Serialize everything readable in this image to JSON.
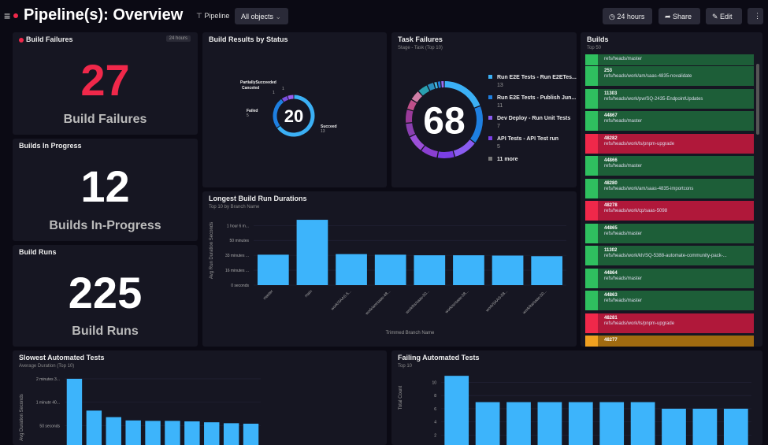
{
  "header": {
    "title": "Pipeline(s): Overview",
    "filter_label": "Pipeline",
    "filter_value": "All objects",
    "time_label": "24 hours",
    "share_label": "Share",
    "edit_label": "Edit",
    "more": "⋮",
    "menu": "≡"
  },
  "build_failures": {
    "title": "Build Failures",
    "tag": "24 hours",
    "value": "27",
    "label": "Build Failures",
    "color": "#f0284a"
  },
  "builds_in_progress": {
    "title": "Builds In Progress",
    "value": "12",
    "label": "Builds In-Progress"
  },
  "build_runs": {
    "title": "Build Runs",
    "value": "225",
    "label": "Build Runs"
  },
  "build_results": {
    "title": "Build Results by Status",
    "total": "20",
    "slices": [
      {
        "name": "Succeed",
        "value": 13,
        "color": "#3bb0f5"
      },
      {
        "name": "Failed",
        "value": 5,
        "color": "#1e7fe0"
      },
      {
        "name": "PartiallySucceeded",
        "value": 1,
        "color": "#7a4fe0"
      },
      {
        "name": "Canceled",
        "value": 1,
        "color": "#9a5cf0"
      }
    ]
  },
  "task_failures": {
    "title": "Task Failures",
    "subtitle": "Stage - Task (Top 10)",
    "total": "68",
    "legend": [
      {
        "label": "Run E2E Tests - Run E2ETes...",
        "value": "13",
        "color": "#3bb0f5"
      },
      {
        "label": "Run E2E Tests - Publish Jun...",
        "value": "11",
        "color": "#1e7fe0"
      },
      {
        "label": "Dev Deploy - Run Unit Tests",
        "value": "7",
        "color": "#8a5cf0"
      },
      {
        "label": "API Tests - API Test run",
        "value": "5",
        "color": "#7b3fe4"
      },
      {
        "label": "11 more",
        "color": "#777"
      }
    ],
    "segments": [
      {
        "value": 13,
        "color": "#3bb0f5"
      },
      {
        "value": 11,
        "color": "#1e7fe0"
      },
      {
        "value": 7,
        "color": "#8a5cf0"
      },
      {
        "value": 5,
        "color": "#7b3fe4"
      },
      {
        "value": 5,
        "color": "#8a3fd0"
      },
      {
        "value": 5,
        "color": "#9b4fd8"
      },
      {
        "value": 4,
        "color": "#8a3fb0"
      },
      {
        "value": 4,
        "color": "#9a3a9a"
      },
      {
        "value": 3,
        "color": "#c0508a"
      },
      {
        "value": 3,
        "color": "#d080a8"
      },
      {
        "value": 3,
        "color": "#2aa0b0"
      },
      {
        "value": 2,
        "color": "#2a90c0"
      },
      {
        "value": 1,
        "color": "#40b8e0"
      },
      {
        "value": 1,
        "color": "#2080e0"
      },
      {
        "value": 1,
        "color": "#9a6cf0"
      }
    ]
  },
  "builds": {
    "title": "Builds",
    "subtitle": "Top 50",
    "items": [
      {
        "number": "",
        "branch": "refs/heads/master",
        "status": "success"
      },
      {
        "number": "253",
        "branch": "refs/heads/work/am/saas-4835-novalidate",
        "status": "success"
      },
      {
        "number": "11303",
        "branch": "refs/heads/work/pw/SQ-2435-EndpointUpdates",
        "status": "success"
      },
      {
        "number": "44867",
        "branch": "refs/heads/master",
        "status": "success"
      },
      {
        "number": "48282",
        "branch": "refs/heads/work/ls/pnpm-upgrade",
        "status": "failed"
      },
      {
        "number": "44866",
        "branch": "refs/heads/master",
        "status": "success"
      },
      {
        "number": "48280",
        "branch": "refs/heads/work/am/saas-4835-importcons",
        "status": "success"
      },
      {
        "number": "48278",
        "branch": "refs/heads/work/cp/saas-5098",
        "status": "failed"
      },
      {
        "number": "44865",
        "branch": "refs/heads/master",
        "status": "success"
      },
      {
        "number": "11302",
        "branch": "refs/heads/work/kh/SQ-5388-automate-community-pack-...",
        "status": "success"
      },
      {
        "number": "44864",
        "branch": "refs/heads/master",
        "status": "success"
      },
      {
        "number": "44863",
        "branch": "refs/heads/master",
        "status": "success"
      },
      {
        "number": "48281",
        "branch": "refs/heads/work/ls/pnpm-upgrade",
        "status": "failed"
      },
      {
        "number": "48277",
        "branch": "",
        "status": "partial"
      }
    ],
    "colors": {
      "success": [
        "#2fbf5f",
        "#1d5e38"
      ],
      "failed": [
        "#f0284a",
        "#b0183a"
      ],
      "partial": [
        "#f0a020",
        "#a06a10"
      ]
    }
  },
  "chart_data": [
    {
      "type": "bar",
      "title": "Longest Build Run Durations",
      "subtitle": "Top 10 by Branch Name",
      "xlabel": "Trimmed Branch Name",
      "ylabel": "Avg Run Duration Seconds",
      "categories": [
        "master",
        "main",
        "work/SAAS-5...",
        "work/am/saas-48...",
        "work/ks/saas-50...",
        "work/sr/saas-58...",
        "work/SAAS-58...",
        "work/ka/saas-50..."
      ],
      "values": [
        2040,
        4380,
        2080,
        2040,
        2000,
        2000,
        1980,
        1940
      ],
      "yticks": [
        {
          "v": 0,
          "label": "0 seconds"
        },
        {
          "v": 1000,
          "label": "16 minutes ..."
        },
        {
          "v": 2000,
          "label": "33 minutes ..."
        },
        {
          "v": 3000,
          "label": "50 minutes"
        },
        {
          "v": 4000,
          "label": "1 hour 6 m..."
        }
      ],
      "ylim": [
        0,
        4700
      ],
      "color": "#3db4fb"
    },
    {
      "type": "bar",
      "title": "Slowest Automated Tests",
      "subtitle": "Average Duration (Top 10)",
      "ylabel": "Avg Duration Seconds",
      "values": [
        150,
        82,
        68,
        61,
        60,
        60,
        59,
        57,
        55,
        54
      ],
      "yticks": [
        {
          "v": 50,
          "label": "50 seconds"
        },
        {
          "v": 100,
          "label": "1 minute 40..."
        },
        {
          "v": 150,
          "label": "2 minutes 3..."
        }
      ],
      "ylim": [
        0,
        160
      ],
      "color": "#3db4fb"
    },
    {
      "type": "bar",
      "title": "Failing Automated Tests",
      "subtitle": "Top 10",
      "ylabel": "Total Count",
      "values": [
        11,
        7,
        7,
        7,
        7,
        7,
        7,
        6,
        6,
        6
      ],
      "yticks": [
        {
          "v": 2,
          "label": "2"
        },
        {
          "v": 4,
          "label": "4"
        },
        {
          "v": 6,
          "label": "6"
        },
        {
          "v": 8,
          "label": "8"
        },
        {
          "v": 10,
          "label": "10"
        }
      ],
      "ylim": [
        0,
        11.5
      ],
      "color": "#3db4fb"
    }
  ]
}
